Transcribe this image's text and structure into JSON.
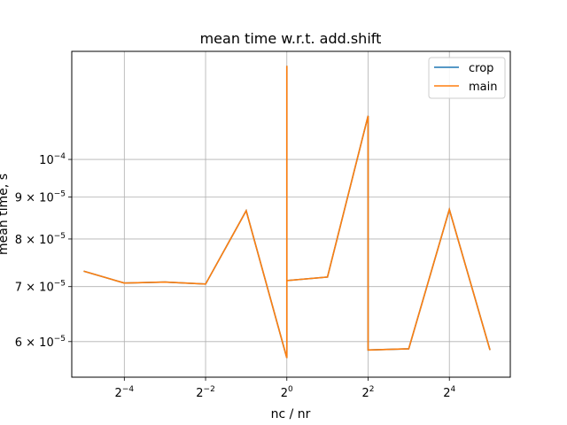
{
  "chart_data": {
    "type": "line",
    "title": "mean time w.r.t. add.shift",
    "xlabel": "nc / nr",
    "ylabel": "mean time, s",
    "x_scale": "log2",
    "y_scale": "log",
    "xlim": [
      0.0255,
      45.25
    ],
    "ylim": [
      5.43e-05,
      0.0001354
    ],
    "grid": true,
    "legend_position": "top-right",
    "x_ticks": [
      {
        "value": 0.0625,
        "base": "2",
        "exp": "−4"
      },
      {
        "value": 0.25,
        "base": "2",
        "exp": "−2"
      },
      {
        "value": 1,
        "base": "2",
        "exp": "0"
      },
      {
        "value": 4,
        "base": "2",
        "exp": "2"
      },
      {
        "value": 16,
        "base": "2",
        "exp": "4"
      }
    ],
    "y_ticks": [
      {
        "value": 6e-05,
        "mant": "6",
        "exp": "−5"
      },
      {
        "value": 7e-05,
        "mant": "7",
        "exp": "−5"
      },
      {
        "value": 8e-05,
        "mant": "8",
        "exp": "−5"
      },
      {
        "value": 9e-05,
        "mant": "9",
        "exp": "−5"
      },
      {
        "value": 0.0001,
        "mant": "",
        "exp": "−4"
      }
    ],
    "series": [
      {
        "name": "crop",
        "color": "#1f77b4",
        "x": [
          0.03125,
          0.0625,
          0.125,
          0.25,
          0.5,
          1,
          1,
          1,
          2,
          4,
          4,
          8,
          16,
          32
        ],
        "y": [
          7.31e-05,
          7.07e-05,
          7.09e-05,
          7.05e-05,
          8.66e-05,
          5.73e-05,
          0.00013,
          7.12e-05,
          7.19e-05,
          0.000113,
          5.86e-05,
          5.88e-05,
          8.69e-05,
          5.86e-05
        ]
      },
      {
        "name": "main",
        "color": "#ff7f0e",
        "x": [
          0.03125,
          0.0625,
          0.125,
          0.25,
          0.5,
          1,
          1,
          1,
          2,
          4,
          4,
          8,
          16,
          32
        ],
        "y": [
          7.31e-05,
          7.07e-05,
          7.09e-05,
          7.05e-05,
          8.66e-05,
          5.73e-05,
          0.00013,
          7.12e-05,
          7.19e-05,
          0.000113,
          5.86e-05,
          5.88e-05,
          8.69e-05,
          5.86e-05
        ]
      }
    ]
  }
}
